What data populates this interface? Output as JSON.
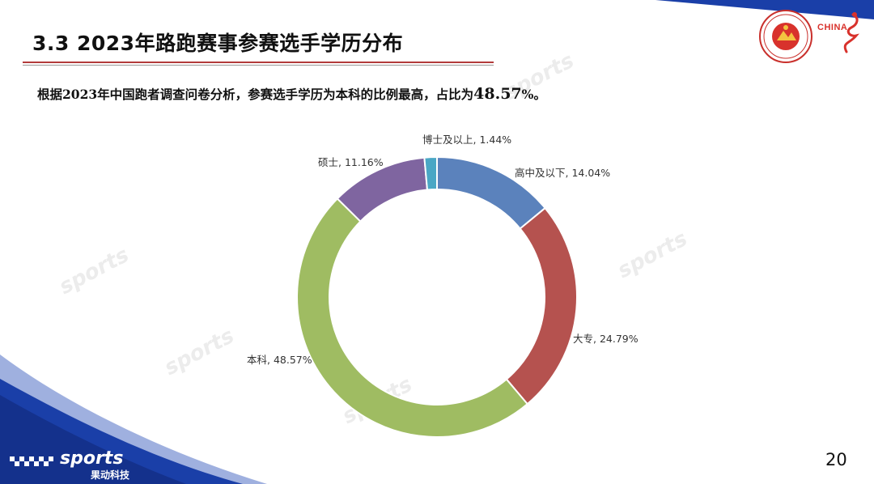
{
  "slide": {
    "title": "3.3 2023年路跑赛事参赛选手学历分布",
    "summary_prefix": "根据2023年中国跑者调查问卷分析，参赛选手学历为本科的比例最高，占比为",
    "summary_value": "48.57",
    "summary_suffix": "%。",
    "page_number": "20"
  },
  "branding": {
    "logo_right_text": "CHINA",
    "brand_name": "sports",
    "brand_cn": "果动科技",
    "watermark": "sports"
  },
  "colors": {
    "accent_red": "#b23b3b",
    "corner_blue": "#1a3fa8"
  },
  "chart_data": {
    "type": "donut",
    "categories": [
      "高中及以下",
      "大专",
      "本科",
      "硕士",
      "博士及以上"
    ],
    "values": [
      14.04,
      24.79,
      48.57,
      11.16,
      1.44
    ],
    "unit": "%",
    "colors": [
      "#5b82bc",
      "#b5524f",
      "#9fbc62",
      "#7f65a0",
      "#4aa7c5"
    ],
    "labels": [
      "高中及以下, 14.04%",
      "大专, 24.79%",
      "本科, 48.57%",
      "硕士, 11.16%",
      "博士及以上, 1.44%"
    ]
  }
}
